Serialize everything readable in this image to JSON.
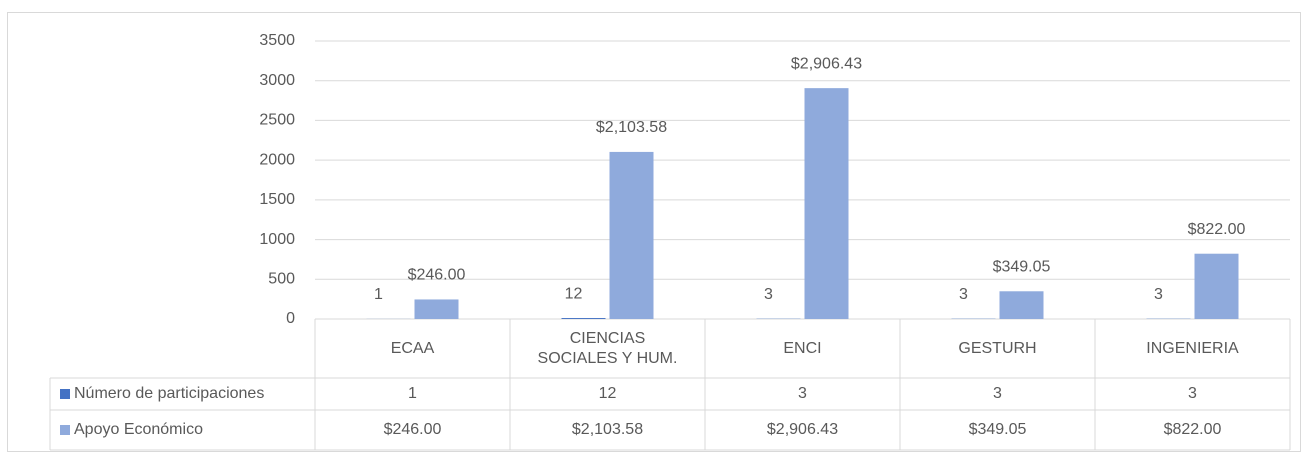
{
  "chart_data": {
    "type": "bar",
    "categories": [
      "ECAA",
      "CIENCIAS SOCIALES Y HUM.",
      "ENCI",
      "GESTURH",
      "INGENIERIA"
    ],
    "series": [
      {
        "name": "Número de participaciones",
        "color": "#4472c4",
        "values": [
          1,
          12,
          3,
          3,
          3
        ]
      },
      {
        "name": "Apoyo Económico",
        "color": "#8faadc",
        "values": [
          246,
          2103.58,
          2906.43,
          349.05,
          822
        ],
        "value_labels": [
          "$246.00",
          "$2,103.58",
          "$2,906.43",
          "$349.05",
          "$822.00"
        ]
      }
    ],
    "ylim": [
      0,
      3500
    ],
    "yticks": [
      0,
      500,
      1000,
      1500,
      2000,
      2500,
      3000,
      3500
    ],
    "grid": true
  }
}
